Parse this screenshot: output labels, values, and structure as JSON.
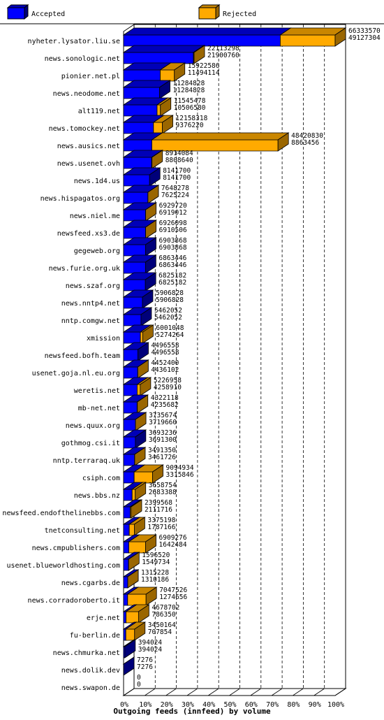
{
  "legend": [
    {
      "label": "Accepted",
      "color": "#0000ff"
    },
    {
      "label": "Rejected",
      "color": "#ffaa00"
    }
  ],
  "chart_data": {
    "type": "bar",
    "orientation": "horizontal",
    "stacked": true,
    "title": "Outgoing feeds (innfeed) by volume",
    "xlabel": "Outgoing feeds (innfeed) by volume",
    "xlim": [
      0,
      100
    ],
    "x_unit": "%",
    "x_ticks": [
      "0%",
      "10%",
      "20%",
      "30%",
      "40%",
      "50%",
      "60%",
      "70%",
      "80%",
      "90%",
      "100%"
    ],
    "max_total": 66333570,
    "grid": "vertical dashed lines every 10%",
    "legend_position": "top",
    "series": [
      {
        "name": "Accepted",
        "color": "#0000ff"
      },
      {
        "name": "Rejected",
        "color": "#ffaa00"
      }
    ],
    "rows": [
      {
        "site": "nyheter.lysator.liu.se",
        "total": 66333570,
        "accepted": 49127304
      },
      {
        "site": "news.sonologic.net",
        "total": 22113298,
        "accepted": 21900760
      },
      {
        "site": "pionier.net.pl",
        "total": 15922586,
        "accepted": 11494114
      },
      {
        "site": "news.neodome.net",
        "total": 11284828,
        "accepted": 11284828
      },
      {
        "site": "alt119.net",
        "total": 11545478,
        "accepted": 10506580
      },
      {
        "site": "news.tomockey.net",
        "total": 12158318,
        "accepted": 9376220
      },
      {
        "site": "news.ausics.net",
        "total": 48420830,
        "accepted": 8863456
      },
      {
        "site": "news.usenet.ovh",
        "total": 8914084,
        "accepted": 8808640
      },
      {
        "site": "news.1d4.us",
        "total": 8141700,
        "accepted": 8141700
      },
      {
        "site": "news.hispagatos.org",
        "total": 7648278,
        "accepted": 7625224
      },
      {
        "site": "news.niel.me",
        "total": 6929720,
        "accepted": 6919012
      },
      {
        "site": "newsfeed.xs3.de",
        "total": 6926098,
        "accepted": 6910506
      },
      {
        "site": "gegeweb.org",
        "total": 6903868,
        "accepted": 6903868
      },
      {
        "site": "news.furie.org.uk",
        "total": 6863446,
        "accepted": 6863446
      },
      {
        "site": "news.szaf.org",
        "total": 6825182,
        "accepted": 6825182
      },
      {
        "site": "news.nntp4.net",
        "total": 5906828,
        "accepted": 5906828
      },
      {
        "site": "nntp.comgw.net",
        "total": 5462052,
        "accepted": 5462052
      },
      {
        "site": "xmission",
        "total": 6001048,
        "accepted": 5274264
      },
      {
        "site": "newsfeed.bofh.team",
        "total": 4496558,
        "accepted": 4496558
      },
      {
        "site": "usenet.goja.nl.eu.org",
        "total": 4452400,
        "accepted": 4436102
      },
      {
        "site": "weretis.net",
        "total": 5226958,
        "accepted": 4258910
      },
      {
        "site": "mb-net.net",
        "total": 4322118,
        "accepted": 4235682
      },
      {
        "site": "news.quux.org",
        "total": 3735674,
        "accepted": 3719660
      },
      {
        "site": "gothmog.csi.it",
        "total": 3693236,
        "accepted": 3691300
      },
      {
        "site": "nntp.terraraq.uk",
        "total": 3491350,
        "accepted": 3461726
      },
      {
        "site": "csiph.com",
        "total": 9094934,
        "accepted": 3315846
      },
      {
        "site": "news.bbs.nz",
        "total": 3658754,
        "accepted": 2683388
      },
      {
        "site": "newsfeed.endofthelinebbs.com",
        "total": 2399568,
        "accepted": 2111716
      },
      {
        "site": "tnetconsulting.net",
        "total": 3375198,
        "accepted": 1787166
      },
      {
        "site": "news.cmpublishers.com",
        "total": 6909276,
        "accepted": 1642484
      },
      {
        "site": "usenet.blueworldhosting.com",
        "total": 1596520,
        "accepted": 1549734
      },
      {
        "site": "news.cgarbs.de",
        "total": 1315228,
        "accepted": 1310186
      },
      {
        "site": "news.corradoroberto.it",
        "total": 7047526,
        "accepted": 1274656
      },
      {
        "site": "erje.net",
        "total": 4678702,
        "accepted": 786350
      },
      {
        "site": "fu-berlin.de",
        "total": 3450164,
        "accepted": 707854
      },
      {
        "site": "news.chmurka.net",
        "total": 394024,
        "accepted": 394024
      },
      {
        "site": "news.dolik.dev",
        "total": 7276,
        "accepted": 7276
      },
      {
        "site": "news.swapon.de",
        "total": 0,
        "accepted": 0
      }
    ]
  }
}
